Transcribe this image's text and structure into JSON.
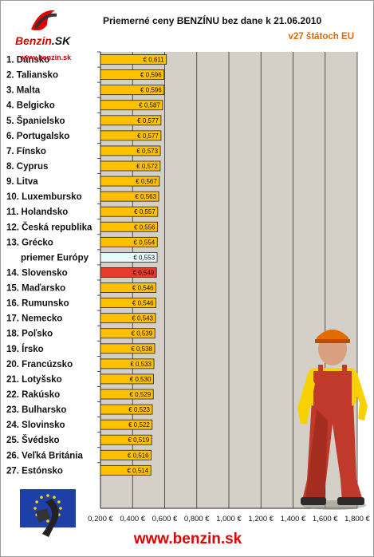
{
  "header": {
    "logo_text_main": "Benzin",
    "logo_text_sk": ".SK",
    "logo_url": "www.benzin.sk"
  },
  "footer": {
    "url": "www.benzin.sk"
  },
  "colors": {
    "plot_bg": "#d4d0c8",
    "bar_fill": "#ffc000",
    "bar_highlight": "#e8392a",
    "bar_average": "#e6fbfb",
    "average_label": "#5fa3dd",
    "highlight_label": "#e00000"
  },
  "chart_data": {
    "type": "bar",
    "orientation": "horizontal",
    "title": "Priemerné ceny BENZÍNU bez dane k 21.06.2010",
    "subtitle": "v27 štátoch EU",
    "xlim": [
      0.2,
      1.8
    ],
    "x_ticks": [
      "0,200 €",
      "0,400 €",
      "0,600 €",
      "0,800 €",
      "1,000 €",
      "1,200 €",
      "1,400 €",
      "1,600 €",
      "1,800 €"
    ],
    "x_tick_values": [
      0.2,
      0.4,
      0.6,
      0.8,
      1.0,
      1.2,
      1.4,
      1.6,
      1.8
    ],
    "grid": true,
    "categories": [
      "1. Dánsko",
      "2. Taliansko",
      "3. Malta",
      "4. Belgicko",
      "5. Španielsko",
      "6. Portugalsko",
      "7. Fínsko",
      "8. Cyprus",
      "9. Litva",
      "10. Luxembursko",
      "11. Holandsko",
      "12. Česká republika",
      "13. Grécko",
      "priemer Európy",
      "14. Slovensko",
      "15. Maďarsko",
      "16. Rumunsko",
      "17. Nemecko",
      "18. Poľsko",
      "19. Írsko",
      "20. Francúzsko",
      "21. Lotyšsko",
      "22. Rakúsko",
      "23. Bulharsko",
      "24. Slovinsko",
      "25. Švédsko",
      "26. Veľká Británia",
      "27. Estónsko"
    ],
    "values": [
      0.611,
      0.596,
      0.596,
      0.587,
      0.577,
      0.577,
      0.573,
      0.572,
      0.567,
      0.563,
      0.557,
      0.556,
      0.554,
      0.553,
      0.549,
      0.546,
      0.546,
      0.543,
      0.539,
      0.538,
      0.533,
      0.53,
      0.529,
      0.523,
      0.522,
      0.519,
      0.516,
      0.514
    ],
    "value_labels": [
      "€ 0,611",
      "€ 0,596",
      "€ 0,596",
      "€ 0,587",
      "€ 0,577",
      "€ 0,577",
      "€ 0,573",
      "€ 0,572",
      "€ 0,567",
      "€ 0,563",
      "€ 0,557",
      "€ 0,556",
      "€ 0,554",
      "€ 0,553",
      "€ 0,549",
      "€ 0,546",
      "€ 0,546",
      "€ 0,543",
      "€ 0,539",
      "€ 0,538",
      "€ 0,533",
      "€ 0,530",
      "€ 0,529",
      "€ 0,523",
      "€ 0,522",
      "€ 0,519",
      "€ 0,516",
      "€ 0,514"
    ],
    "average_category": "priemer Európy",
    "highlight_category": "14. Slovensko"
  }
}
